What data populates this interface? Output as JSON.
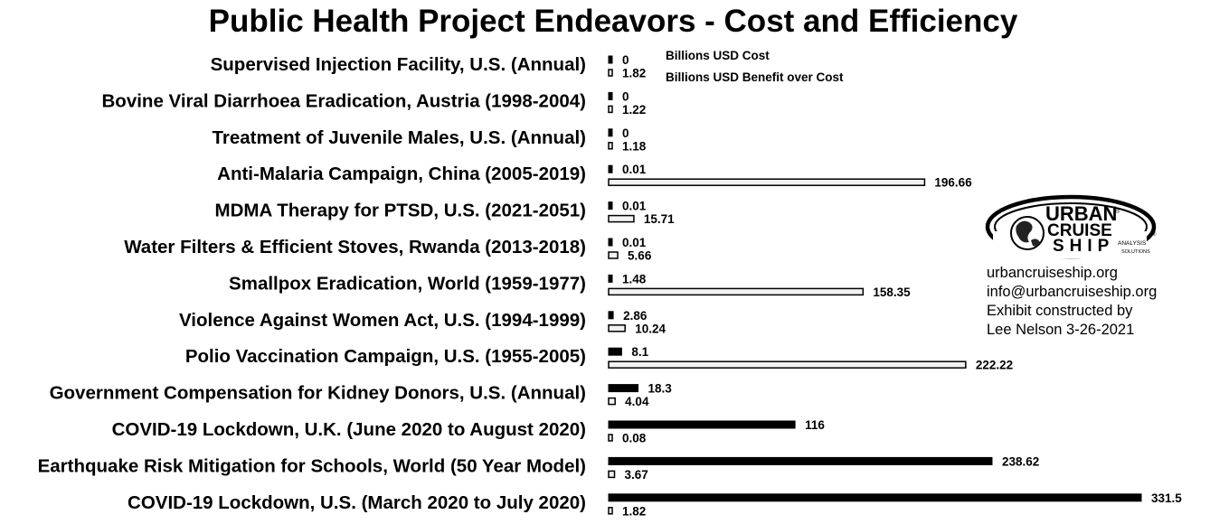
{
  "chart_data": {
    "type": "bar",
    "orientation": "horizontal",
    "title": "Public Health Project Endeavors - Cost and Efficiency",
    "legend_placement": "top, right of bars",
    "categories": [
      "Supervised Injection Facility, U.S. (Annual)",
      "Bovine Viral Diarrhoea Eradication, Austria (1998-2004)",
      "Treatment of Juvenile Males, U.S. (Annual)",
      "Anti-Malaria Campaign, China (2005-2019)",
      "MDMA Therapy for PTSD, U.S. (2021-2051)",
      "Water Filters & Efficient Stoves, Rwanda (2013-2018)",
      "Smallpox Eradication, World (1959-1977)",
      "Violence Against Women Act, U.S. (1994-1999)",
      "Polio Vaccination Campaign, U.S. (1955-2005)",
      "Government Compensation for Kidney Donors, U.S. (Annual)",
      "COVID-19 Lockdown, U.K. (June 2020 to August 2020)",
      "Earthquake Risk Mitigation for Schools, World (50 Year Model)",
      "COVID-19 Lockdown, U.S. (March 2020 to July 2020)"
    ],
    "series": [
      {
        "name": "Billions USD Cost",
        "color": "#000000",
        "values": [
          0,
          0,
          0,
          0.01,
          0.01,
          0.01,
          1.48,
          2.86,
          8.1,
          18.3,
          116,
          238.62,
          331.5
        ],
        "labels": [
          "0",
          "0",
          "0",
          "0.01",
          "0.01",
          "0.01",
          "1.48",
          "2.86",
          "8.1",
          "18.3",
          "116",
          "238.62",
          "331.5"
        ]
      },
      {
        "name": "Billions USD Benefit over Cost",
        "color": "#f2f2f2",
        "values": [
          1.82,
          1.22,
          1.18,
          196.66,
          15.71,
          5.66,
          158.35,
          10.24,
          222.22,
          4.04,
          0.08,
          3.67,
          1.82
        ],
        "labels": [
          "1.82",
          "1.22",
          "1.18",
          "196.66",
          "15.71",
          "5.66",
          "158.35",
          "10.24",
          "222.22",
          "4.04",
          "0.08",
          "3.67",
          "1.82"
        ]
      }
    ],
    "xlim": [
      0,
      331.5
    ],
    "grid": false,
    "axes_visible": false
  },
  "logo": {
    "line1": "URBAN",
    "line2": "CRUISE",
    "line3": "SHIP",
    "tagline1": "ANALYSIS",
    "tagline2": "SOLUTIONS",
    "registered": "®"
  },
  "contact": {
    "website": "urbancruiseship.org",
    "email": "info@urbancruiseship.org",
    "credit1": "Exhibit constructed by",
    "credit2": "Lee Nelson 3-26-2021"
  }
}
